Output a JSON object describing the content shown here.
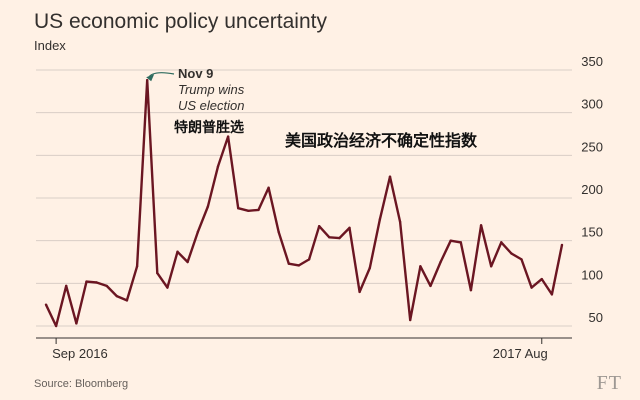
{
  "title": "US economic policy uncertainty",
  "subtitle": "Index",
  "source": "Source: Bloomberg",
  "brand": "FT",
  "colors": {
    "background": "#fff1e5",
    "line": "#6b1622",
    "grid": "#d9cec6",
    "annotation": "#2e6b5e"
  },
  "annotation": {
    "date": "Nov 9",
    "line1": "Trump wins",
    "line2": "US election",
    "chinese_annotation": "特朗普胜选",
    "chinese_title": "美国政治经济不确定性指数"
  },
  "chart_data": {
    "type": "line",
    "title": "US economic policy uncertainty",
    "ylabel": "Index",
    "ylim": [
      40,
      360
    ],
    "yticks": [
      50,
      100,
      150,
      200,
      250,
      300,
      350
    ],
    "grid": true,
    "y_axis_side": "right",
    "x_labels": [
      {
        "label": "Sep 2016",
        "index": 1
      },
      {
        "label": "2017 Aug",
        "index": 49
      }
    ],
    "series": [
      {
        "values": [
          75,
          50,
          97,
          53,
          102,
          101,
          97,
          85,
          80,
          120,
          338,
          112,
          95,
          137,
          125,
          160,
          190,
          237,
          272,
          188,
          185,
          186,
          212,
          160,
          123,
          121,
          128,
          167,
          154,
          153,
          165,
          90,
          118,
          175,
          225,
          172,
          57,
          120,
          97,
          125,
          150,
          148,
          92,
          168,
          120,
          148,
          135,
          128,
          95,
          105,
          87,
          145
        ]
      }
    ]
  }
}
